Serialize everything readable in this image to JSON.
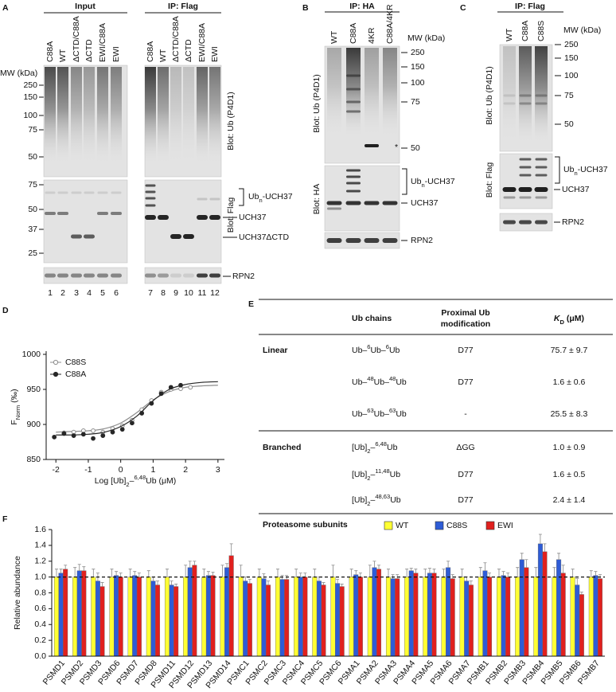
{
  "panel_a": {
    "label": "A",
    "input_title": "Input",
    "ip_title": "IP: Flag",
    "lanes": [
      "C88A",
      "WT",
      "ΔCTD/C88A",
      "ΔCTD",
      "EWI/C88A",
      "EWI"
    ],
    "ip_lanes": [
      "C88A",
      "WT",
      "ΔCTD/C88A",
      "ΔCTD",
      "EWI/C88A",
      "EWI"
    ],
    "mw_title": "MW (kDa)",
    "mw_upper": [
      250,
      150,
      100,
      75,
      50
    ],
    "mw_lower": [
      75,
      50,
      37,
      25
    ],
    "blot_ub": "Blot: Ub (P4D1)",
    "blot_flag": "Blot: Flag",
    "ubn": [
      "Ub",
      {
        "sub": "n"
      },
      "-UCH37"
    ],
    "uch37": "UCH37",
    "uch37dctd": "UCH37ΔCTD",
    "rpn2": "RPN2",
    "lane_numbers": [
      1,
      2,
      3,
      4,
      5,
      6,
      7,
      8,
      9,
      10,
      11,
      12
    ]
  },
  "panel_b": {
    "label": "B",
    "title": "IP: HA",
    "lanes": [
      "WT",
      "C88A",
      "4KR",
      "C88A/4KR"
    ],
    "mw_title": "MW (kDa)",
    "mw": [
      250,
      150,
      100,
      75,
      50
    ],
    "asterisk": "*",
    "blot_ub": "Blot: Ub (P4D1)",
    "blot_ha": "Blot: HA",
    "ubn": [
      "Ub",
      {
        "sub": "n"
      },
      "-UCH37"
    ],
    "uch37": "UCH37",
    "rpn2": "RPN2"
  },
  "panel_c": {
    "label": "C",
    "title": "IP: Flag",
    "lanes": [
      "WT",
      "C88A",
      "C88S"
    ],
    "mw_title": "MW (kDa)",
    "mw": [
      250,
      150,
      100,
      75,
      50
    ],
    "blot_ub": "Blot: Ub (P4D1)",
    "blot_flag": "Blot: Flag",
    "ubn": [
      "Ub",
      {
        "sub": "n"
      },
      "-UCH37"
    ],
    "uch37": "UCH37",
    "rpn2": "RPN2"
  },
  "table": {
    "label": "E",
    "header": {
      "chains": "Ub chains",
      "modification": [
        "Proximal Ub",
        "modification"
      ],
      "kd": [
        {
          "italic": "K"
        },
        {
          "sub": "D"
        },
        " (μM)"
      ]
    },
    "groups": [
      {
        "name": "Linear",
        "rows": [
          {
            "chain": [
              "Ub–",
              {
                "sup": "6"
              },
              "Ub–",
              {
                "sup": "6"
              },
              "Ub"
            ],
            "modification": "D77",
            "kd": "75.7 ± 9.7"
          },
          {
            "chain": [
              "Ub–",
              {
                "sup": "48"
              },
              "Ub–",
              {
                "sup": "48"
              },
              "Ub"
            ],
            "modification": "D77",
            "kd": "1.6 ± 0.6"
          },
          {
            "chain": [
              "Ub–",
              {
                "sup": "63"
              },
              "Ub–",
              {
                "sup": "63"
              },
              "Ub"
            ],
            "modification": "-",
            "kd": "25.5 ± 8.3"
          }
        ]
      },
      {
        "name": "Branched",
        "rows": [
          {
            "chain": [
              "[Ub]",
              {
                "sub": "2"
              },
              "–",
              {
                "sup": "6,48"
              },
              "Ub"
            ],
            "modification": "ΔGG",
            "kd": "1.0 ± 0.9"
          },
          {
            "chain": [
              "[Ub]",
              {
                "sub": "2"
              },
              "–",
              {
                "sup": "11,48"
              },
              "Ub"
            ],
            "modification": "D77",
            "kd": "1.6 ± 0.5"
          },
          {
            "chain": [
              "[Ub]",
              {
                "sub": "2"
              },
              "–",
              {
                "sup": "48,63"
              },
              "Ub"
            ],
            "modification": "D77",
            "kd": "2.4 ± 1.4"
          }
        ]
      }
    ]
  },
  "chart_data": [
    {
      "type": "scatter",
      "label": "D",
      "ylabel": [
        "F",
        {
          "sub": "Norm"
        },
        " (‰)"
      ],
      "xlabel": [
        "Log [Ub]",
        {
          "sub": "2"
        },
        "–",
        {
          "sup": "6,48"
        },
        "Ub (μM)"
      ],
      "xlim": [
        -2.3,
        3.2
      ],
      "ylim": [
        850,
        1000
      ],
      "xticks": [
        -2,
        -1,
        0,
        1,
        2,
        3
      ],
      "yticks": [
        850,
        900,
        950,
        1000
      ],
      "legend": "top-left",
      "series": [
        {
          "name": "C88S",
          "color": "#8c8c8c",
          "marker": "open",
          "x": [
            -1.75,
            -1.45,
            -1.15,
            -0.85,
            -0.55,
            -0.25,
            0.05,
            0.35,
            0.65,
            0.95,
            1.25,
            1.55,
            1.85,
            2.15
          ],
          "values": [
            888,
            889,
            891,
            891,
            889,
            894,
            898,
            906,
            921,
            934,
            946,
            950,
            951,
            953
          ],
          "fit": {
            "x": [
              -2,
              -1.5,
              -1,
              -0.5,
              0,
              0.5,
              1,
              1.5,
              2,
              2.5,
              3
            ],
            "values": [
              889,
              890,
              891,
              894,
              902,
              917,
              935,
              947,
              953,
              955,
              956
            ]
          }
        },
        {
          "name": "C88A",
          "color": "#262626",
          "marker": "filled",
          "x": [
            -2.05,
            -1.75,
            -1.45,
            -1.15,
            -0.85,
            -0.55,
            -0.25,
            0.05,
            0.35,
            0.65,
            0.95,
            1.25,
            1.55,
            1.85
          ],
          "values": [
            882,
            887,
            884,
            886,
            880,
            884,
            889,
            893,
            902,
            916,
            930,
            944,
            953,
            956
          ],
          "fit": {
            "x": [
              -2,
              -1.5,
              -1,
              -0.5,
              0,
              0.5,
              1,
              1.5,
              2,
              2.5,
              3
            ],
            "values": [
              885,
              885,
              886,
              889,
              897,
              912,
              934,
              950,
              957,
              960,
              961
            ]
          }
        }
      ]
    },
    {
      "type": "bar",
      "label": "F",
      "title": "Proteasome subunits",
      "ylabel": "Relative abundance",
      "categories": [
        "PSMD1",
        "PSMD2",
        "PSMD3",
        "PSMD6",
        "PSMD7",
        "PSMD8",
        "PSMD11",
        "PSMD12",
        "PSMD13",
        "PSMD14",
        "PSMC1",
        "PSMC2",
        "PSMC3",
        "PSMC4",
        "PSMC5",
        "PSMC6",
        "PSMA1",
        "PSMA2",
        "PSMA3",
        "PSMA4",
        "PSMA5",
        "PSMA6",
        "PSMA7",
        "PSMB1",
        "PSMB2",
        "PSMB3",
        "PSMB4",
        "PSMB5",
        "PSMB6",
        "PSMB7"
      ],
      "ylim": [
        0,
        1.6
      ],
      "yticks": [
        {
          "value": 0,
          "label": "0.0"
        },
        0.2,
        0.4,
        0.6,
        0.8,
        {
          "value": 1,
          "label": "1.0"
        },
        1.2,
        1.4,
        1.6
      ],
      "reference_line": 1,
      "legend": "top-right",
      "series": [
        {
          "name": "WT",
          "color": "#ffff33",
          "values": [
            1,
            1,
            1,
            1,
            1,
            1,
            1,
            1,
            1,
            1,
            1,
            1,
            1,
            1,
            1,
            1,
            1,
            1,
            1,
            1,
            1,
            1,
            1,
            1,
            1,
            1,
            1,
            1,
            1,
            1
          ],
          "errors": [
            0.1,
            0.12,
            0.1,
            0.1,
            0.1,
            0.08,
            0.1,
            0.15,
            0.1,
            0.15,
            0.15,
            0.1,
            0.1,
            0.1,
            0.1,
            0.15,
            0.1,
            0.15,
            0.1,
            0.1,
            0.1,
            0.1,
            0.1,
            0.12,
            0.1,
            0.12,
            0.12,
            0.12,
            0.1,
            0.08
          ]
        },
        {
          "name": "C88S",
          "color": "#2e5cd6",
          "values": [
            1.05,
            1.08,
            0.95,
            1.02,
            1.02,
            0.95,
            0.9,
            1.12,
            1.02,
            1.12,
            0.95,
            0.98,
            0.97,
            1,
            0.95,
            0.92,
            1.03,
            1.12,
            0.98,
            1.08,
            1.05,
            1.12,
            0.95,
            1.08,
            1.02,
            1.22,
            1.42,
            1.22,
            0.9,
            1.02
          ],
          "errors": [
            0.05,
            0.08,
            0.1,
            0.05,
            0.05,
            0.05,
            0.05,
            0.08,
            0.05,
            0.05,
            0.05,
            0.06,
            0.05,
            0.05,
            0.05,
            0.05,
            0.05,
            0.08,
            0.05,
            0.03,
            0.06,
            0.08,
            0.05,
            0.1,
            0.05,
            0.08,
            0.12,
            0.08,
            0.08,
            0.05
          ]
        },
        {
          "name": "EWI",
          "color": "#e0201e",
          "values": [
            1.1,
            1.08,
            0.88,
            1,
            1,
            0.9,
            0.88,
            1.15,
            1.02,
            1.27,
            0.92,
            0.9,
            0.97,
            1,
            0.9,
            0.88,
            1,
            1.1,
            0.98,
            1.05,
            1.05,
            0.98,
            0.9,
            1,
            1,
            1.12,
            1.32,
            1.05,
            0.78,
            0.98
          ],
          "errors": [
            0.05,
            0.05,
            0.05,
            0.05,
            0.05,
            0.05,
            0.03,
            0.05,
            0.04,
            0.15,
            0.05,
            0.05,
            0.05,
            0.05,
            0.03,
            0.03,
            0.05,
            0.05,
            0.05,
            0.05,
            0.05,
            0.05,
            0.05,
            0.05,
            0.05,
            0.1,
            0.1,
            0.1,
            0.03,
            0.05
          ]
        }
      ]
    }
  ]
}
